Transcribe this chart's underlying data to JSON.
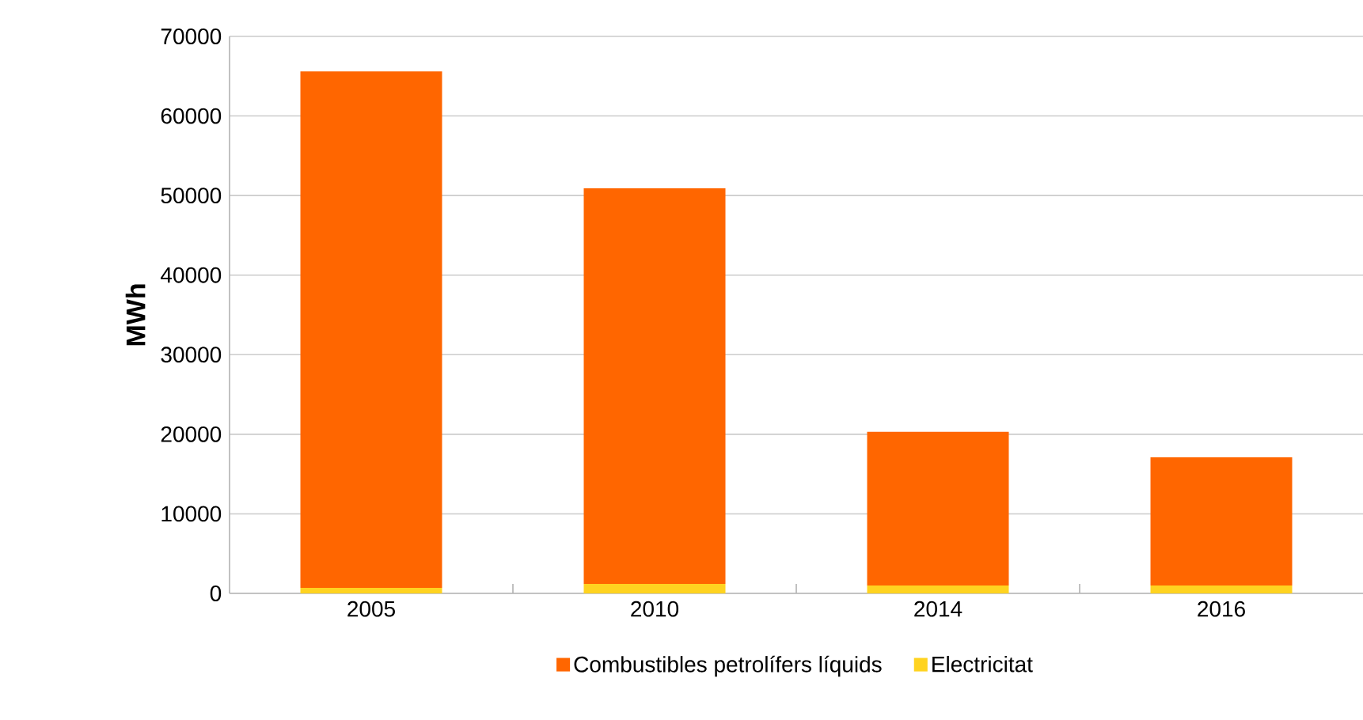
{
  "chart_data": {
    "type": "bar",
    "stacked": true,
    "ylabel": "**MWh**",
    "categories": [
      "2005",
      "2010",
      "2014",
      "2016"
    ],
    "series": [
      {
        "name": "Electricitat",
        "color": "#ffd320",
        "values": [
          700,
          1200,
          1000,
          1000
        ]
      },
      {
        "name": "Combustibles petrolífers líquids",
        "color": "#ff6600",
        "values": [
          64900,
          49700,
          19300,
          16100
        ]
      }
    ],
    "ylim": [
      0,
      70000
    ],
    "yticks": [
      0,
      10000,
      20000,
      30000,
      40000,
      50000,
      60000,
      70000
    ],
    "grid": "y",
    "legend": "bottom"
  }
}
